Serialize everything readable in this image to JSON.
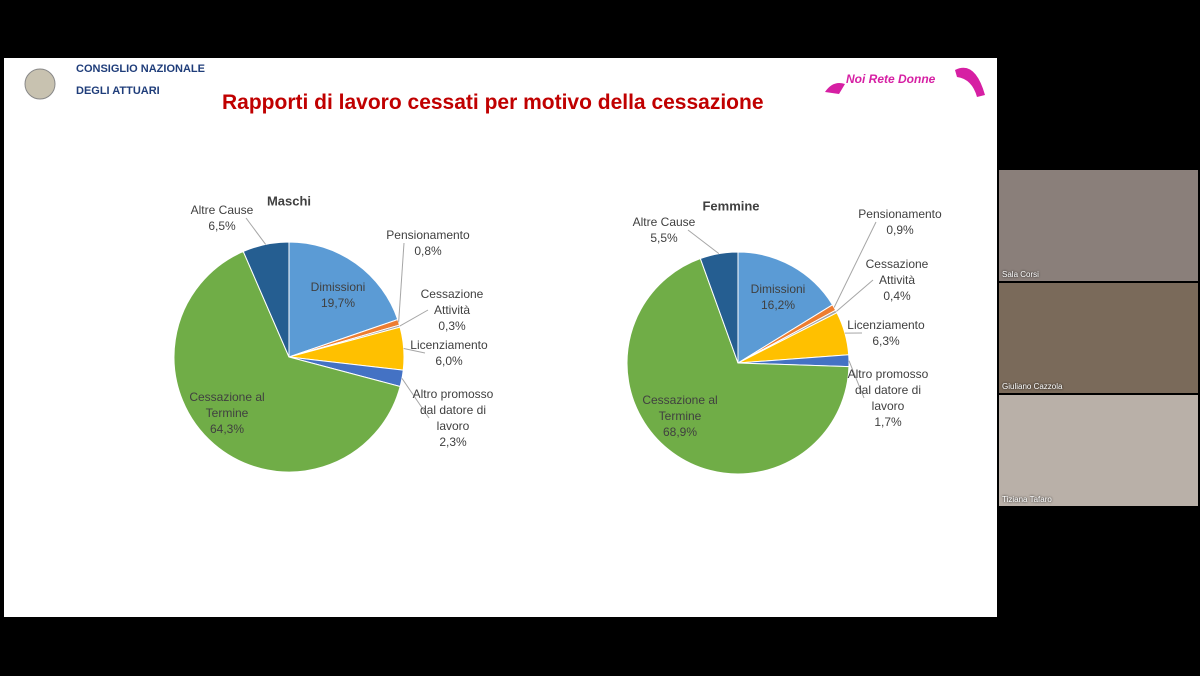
{
  "header": {
    "org_line1": "CONSIGLIO NAZIONALE",
    "org_line2": "DEGLI ATTUARI",
    "logo_text": "Noi Rete Donne",
    "title": "Rapporti di lavoro cessati per motivo della cessazione"
  },
  "chart_data": [
    {
      "type": "pie",
      "title": "Maschi",
      "categories": [
        "Dimissioni",
        "Pensionamento",
        "Cessazione Attività",
        "Licenziamento",
        "Altro promosso dal datore di lavoro",
        "Cessazione al Termine",
        "Altre Cause"
      ],
      "values": [
        19.7,
        0.8,
        0.3,
        6.0,
        2.3,
        64.3,
        6.5
      ],
      "value_labels": [
        "19,7%",
        "0,8%",
        "0,3%",
        "6,0%",
        "2,3%",
        "64,3%",
        "6,5%"
      ],
      "colors": [
        "#5b9bd5",
        "#ed7d31",
        "#a5a5a5",
        "#ffc000",
        "#4472c4",
        "#70ad47",
        "#255e91"
      ]
    },
    {
      "type": "pie",
      "title": "Femmine",
      "categories": [
        "Dimissioni",
        "Pensionamento",
        "Cessazione Attività",
        "Licenziamento",
        "Altro promosso dal datore di lavoro",
        "Cessazione al Termine",
        "Altre Cause"
      ],
      "values": [
        16.2,
        0.9,
        0.4,
        6.3,
        1.7,
        68.9,
        5.5
      ],
      "value_labels": [
        "16,2%",
        "0,9%",
        "0,4%",
        "6,3%",
        "1,7%",
        "68,9%",
        "5,5%"
      ],
      "colors": [
        "#5b9bd5",
        "#ed7d31",
        "#a5a5a5",
        "#ffc000",
        "#4472c4",
        "#70ad47",
        "#255e91"
      ]
    }
  ],
  "participants": [
    "Sala Corsi",
    "Giuliano Cazzola",
    "Tiziana Tafaro"
  ]
}
